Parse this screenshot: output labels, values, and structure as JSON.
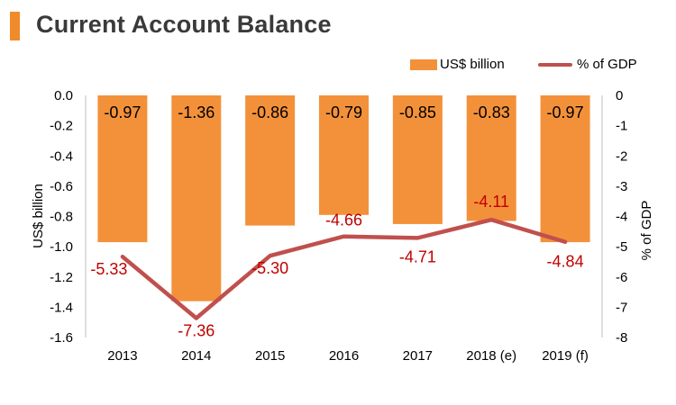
{
  "header": {
    "title": "Current Account Balance"
  },
  "legend": {
    "bar_label": "US$ billion",
    "line_label": "% of GDP"
  },
  "colors": {
    "bar": "#f3913a",
    "line": "#c0504d",
    "label_red": "#c00000",
    "accent": "#f08a2a"
  },
  "chart_data": {
    "type": "bar",
    "categories": [
      "2013",
      "2014",
      "2015",
      "2016",
      "2017",
      "2018 (e)",
      "2019 (f)"
    ],
    "series": [
      {
        "name": "US$ billion",
        "type": "bar",
        "axis": "left",
        "values": [
          -0.97,
          -1.36,
          -0.86,
          -0.79,
          -0.85,
          -0.83,
          -0.97
        ],
        "labels": [
          "-0.97",
          "-1.36",
          "-0.86",
          "-0.79",
          "-0.85",
          "-0.83",
          "-0.97"
        ]
      },
      {
        "name": "% of GDP",
        "type": "line",
        "axis": "right",
        "values": [
          -5.33,
          -7.36,
          -5.3,
          -4.66,
          -4.71,
          -4.11,
          -4.84
        ],
        "labels": [
          "-5.33",
          "-7.36",
          "-5.30",
          "-4.66",
          "-4.71",
          "-4.11",
          "-4.84"
        ]
      }
    ],
    "ylabel": "US$ billion",
    "ylabel_right": "% of GDP",
    "ylim": [
      -1.6,
      0.0
    ],
    "ylim_right": [
      -8,
      0
    ],
    "yticks": [
      "0.0",
      "-0.2",
      "-0.4",
      "-0.6",
      "-0.8",
      "-1.0",
      "-1.2",
      "-1.4",
      "-1.6"
    ],
    "yticks_right": [
      "0",
      "-1",
      "-2",
      "-3",
      "-4",
      "-5",
      "-6",
      "-7",
      "-8"
    ],
    "grid": false,
    "legend_position": "top-right"
  }
}
